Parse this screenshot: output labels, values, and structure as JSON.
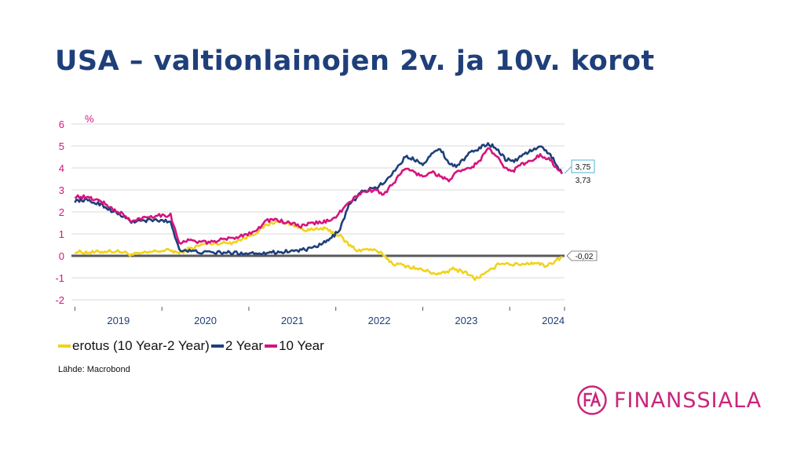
{
  "title": "USA – valtionlainojen 2v. ja 10v. korot",
  "source": "Lähde: Macrobond",
  "logo": {
    "text": "FINANSSIALA",
    "mark": "FA"
  },
  "colors": {
    "title": "#1f3f7a",
    "spread": "#f2d21b",
    "two_year": "#1f3f7a",
    "ten_year": "#d6137e",
    "tick": "#d6137e",
    "year": "#1f3f7a",
    "zero": "#595959",
    "grid": "#d9d9d9"
  },
  "chart_data": {
    "type": "line",
    "ylabel": "%",
    "ylim": [
      -2,
      6
    ],
    "yticks": [
      "6",
      "5",
      "4",
      "3",
      "2",
      "1",
      "0",
      "-1",
      "-2"
    ],
    "x_years": [
      "2019",
      "2020",
      "2021",
      "2022",
      "2023",
      "2024"
    ],
    "xlim": [
      2018.96,
      2024.63
    ],
    "grid": true,
    "legend_placement": "bottom-left",
    "end_labels": {
      "two_year": "3,73",
      "ten_year": "3,75",
      "spread": "-0,02"
    },
    "series": [
      {
        "name": "erotus (10 Year-2 Year)",
        "key": "spread",
        "x": [
          2019.0,
          2019.2,
          2019.4,
          2019.55,
          2019.65,
          2019.8,
          2019.95,
          2020.1,
          2020.2,
          2020.3,
          2020.5,
          2020.8,
          2020.95,
          2021.1,
          2021.2,
          2021.3,
          2021.45,
          2021.6,
          2021.7,
          2021.85,
          2021.95,
          2022.05,
          2022.15,
          2022.25,
          2022.4,
          2022.55,
          2022.65,
          2022.8,
          2022.95,
          2023.05,
          2023.2,
          2023.35,
          2023.5,
          2023.6,
          2023.75,
          2023.9,
          2024.05,
          2024.2,
          2024.3,
          2024.4,
          2024.5,
          2024.6
        ],
        "y": [
          0.18,
          0.15,
          0.22,
          0.18,
          0.05,
          0.12,
          0.22,
          0.25,
          0.12,
          0.3,
          0.55,
          0.6,
          0.8,
          1.1,
          1.4,
          1.55,
          1.5,
          1.25,
          1.15,
          1.25,
          1.1,
          0.9,
          0.5,
          0.25,
          0.3,
          0.05,
          -0.35,
          -0.45,
          -0.6,
          -0.7,
          -0.85,
          -0.6,
          -0.75,
          -1.05,
          -0.75,
          -0.3,
          -0.4,
          -0.35,
          -0.3,
          -0.45,
          -0.3,
          -0.02
        ]
      },
      {
        "name": "2 Year",
        "key": "two_year",
        "x": [
          2019.0,
          2019.1,
          2019.2,
          2019.3,
          2019.4,
          2019.55,
          2019.65,
          2019.8,
          2019.95,
          2020.1,
          2020.15,
          2020.2,
          2020.3,
          2020.5,
          2020.8,
          2020.95,
          2021.1,
          2021.3,
          2021.5,
          2021.7,
          2021.85,
          2021.95,
          2022.05,
          2022.15,
          2022.3,
          2022.45,
          2022.55,
          2022.7,
          2022.8,
          2022.9,
          2023.0,
          2023.1,
          2023.2,
          2023.3,
          2023.4,
          2023.55,
          2023.65,
          2023.75,
          2023.85,
          2023.95,
          2024.05,
          2024.15,
          2024.25,
          2024.35,
          2024.45,
          2024.5,
          2024.6
        ],
        "y": [
          2.5,
          2.55,
          2.45,
          2.35,
          2.1,
          1.8,
          1.55,
          1.6,
          1.62,
          1.55,
          0.9,
          0.3,
          0.22,
          0.15,
          0.14,
          0.12,
          0.13,
          0.16,
          0.22,
          0.3,
          0.55,
          0.8,
          1.25,
          2.3,
          2.9,
          3.1,
          3.3,
          4.0,
          4.5,
          4.4,
          4.2,
          4.6,
          4.9,
          4.2,
          4.1,
          4.7,
          4.9,
          5.1,
          4.9,
          4.4,
          4.3,
          4.6,
          4.8,
          4.95,
          4.7,
          4.4,
          3.73
        ]
      },
      {
        "name": "10 Year",
        "key": "ten_year",
        "x": [
          2019.0,
          2019.1,
          2019.2,
          2019.3,
          2019.4,
          2019.55,
          2019.65,
          2019.8,
          2019.95,
          2020.1,
          2020.15,
          2020.2,
          2020.3,
          2020.5,
          2020.8,
          2020.95,
          2021.1,
          2021.2,
          2021.3,
          2021.45,
          2021.6,
          2021.7,
          2021.85,
          2021.95,
          2022.05,
          2022.15,
          2022.3,
          2022.45,
          2022.55,
          2022.7,
          2022.8,
          2022.9,
          2023.0,
          2023.1,
          2023.2,
          2023.3,
          2023.4,
          2023.55,
          2023.65,
          2023.75,
          2023.85,
          2023.95,
          2024.05,
          2024.15,
          2024.25,
          2024.35,
          2024.45,
          2024.5,
          2024.6
        ],
        "y": [
          2.7,
          2.68,
          2.6,
          2.5,
          2.2,
          1.9,
          1.55,
          1.75,
          1.85,
          1.85,
          1.2,
          0.6,
          0.7,
          0.6,
          0.8,
          0.95,
          1.2,
          1.6,
          1.65,
          1.5,
          1.35,
          1.45,
          1.55,
          1.6,
          2.0,
          2.4,
          2.9,
          3.0,
          2.8,
          3.5,
          4.0,
          3.8,
          3.6,
          3.85,
          3.6,
          3.45,
          3.8,
          4.0,
          4.3,
          4.9,
          4.5,
          4.0,
          3.9,
          4.2,
          4.3,
          4.6,
          4.4,
          4.2,
          3.75
        ]
      }
    ]
  }
}
